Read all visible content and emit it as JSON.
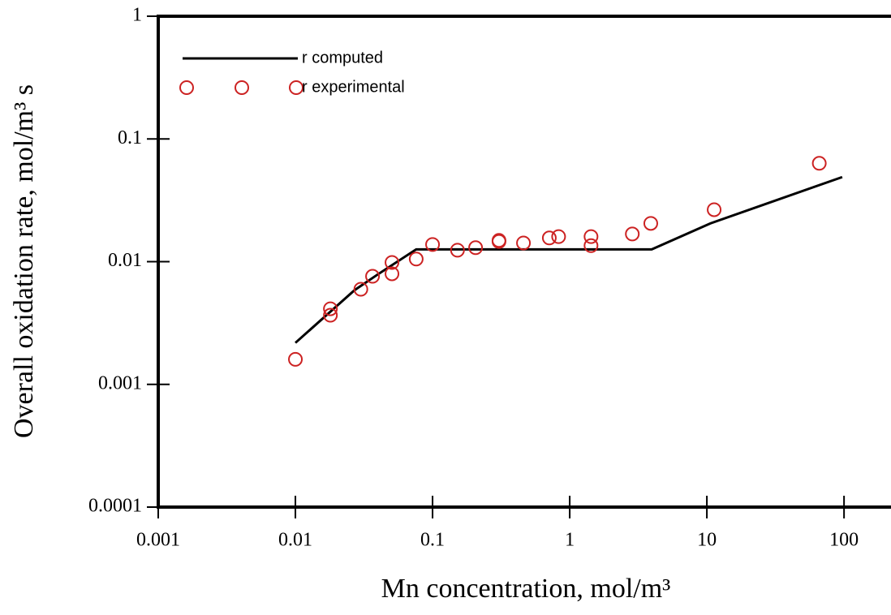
{
  "chart_data": {
    "type": "line",
    "x_label": "Mn concentration, mol/m³",
    "y_label": "Overall oxidation rate, mol/m³ s",
    "xscale": "log",
    "yscale": "log",
    "xlim": [
      0.001,
      220
    ],
    "ylim": [
      0.0001,
      1
    ],
    "xticks": [
      0.001,
      0.01,
      0.1,
      1,
      10,
      100
    ],
    "yticks": [
      0.0001,
      0.001,
      0.01,
      0.1,
      1
    ],
    "legend": "upper left",
    "series": [
      {
        "name": "r computed",
        "type": "line",
        "color": "#000000",
        "x": [
          0.01,
          0.027,
          0.0396,
          0.076,
          3.96,
          10.6,
          97
        ],
        "values": [
          0.00218,
          0.00586,
          0.00783,
          0.0126,
          0.0126,
          0.0205,
          0.0489
        ]
      },
      {
        "name": "r experimental",
        "type": "scatter",
        "color": "#cc2222",
        "x": [
          0.01,
          0.018,
          0.018,
          0.03,
          0.0365,
          0.0506,
          0.0506,
          0.076,
          0.1,
          0.152,
          0.206,
          0.305,
          0.305,
          0.46,
          0.71,
          0.83,
          1.43,
          1.43,
          2.86,
          3.9,
          11.3,
          66
        ],
        "values": [
          0.0016,
          0.00413,
          0.00366,
          0.00596,
          0.0076,
          0.00985,
          0.00796,
          0.0105,
          0.0138,
          0.0124,
          0.013,
          0.0149,
          0.0146,
          0.0142,
          0.0156,
          0.016,
          0.016,
          0.0135,
          0.0168,
          0.0205,
          0.0265,
          0.0633
        ]
      }
    ]
  }
}
